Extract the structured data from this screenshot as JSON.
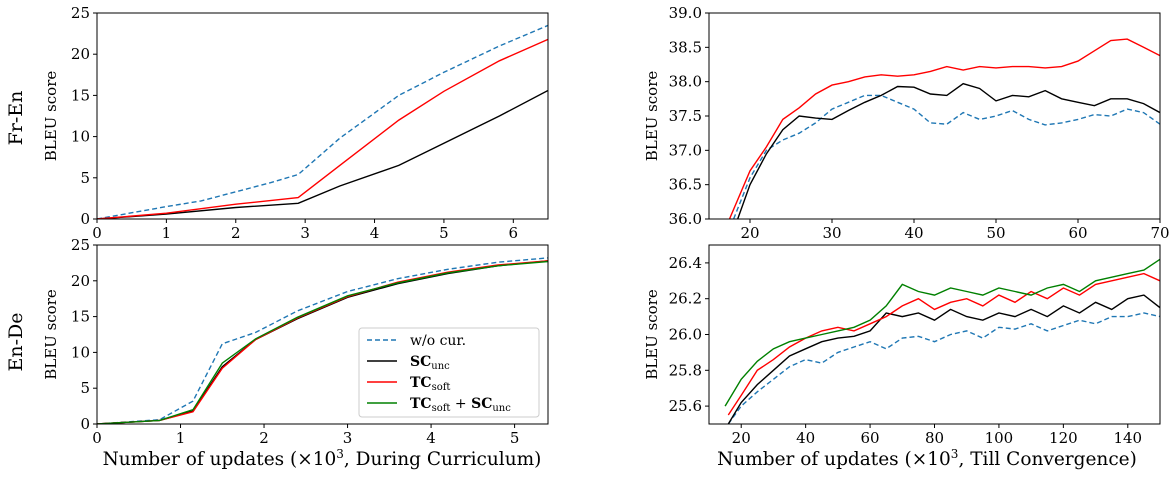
{
  "row_labels": [
    "Fr-En",
    "En-De"
  ],
  "xlabels": {
    "left": {
      "pre": "Number of updates (×10",
      "sup": "3",
      "post": ", During Curriculum)"
    },
    "right": {
      "pre": "Number of updates (×10",
      "sup": "3",
      "post": ", Till Convergence)"
    }
  },
  "colors": {
    "w/o cur.": "#1f77b4",
    "SC_unc": "#000000",
    "TC_soft": "#ff0000",
    "TC_soft+SC_unc": "#008000"
  },
  "legend": {
    "placement": "lower-right of bottom-left panel",
    "entries": [
      {
        "key": "w/o cur.",
        "text": "w/o cur.",
        "style": "dashed"
      },
      {
        "key": "SC_unc",
        "bold": "SC",
        "sub": "unc",
        "style": "solid"
      },
      {
        "key": "TC_soft",
        "bold": "TC",
        "sub": "soft",
        "style": "solid"
      },
      {
        "key": "TC_soft+SC_unc",
        "bold": "TC",
        "sub": "soft",
        "plus": " + ",
        "bold2": "SC",
        "sub2": "unc",
        "style": "solid"
      }
    ]
  },
  "chart_data": [
    {
      "id": "fr-en-curriculum",
      "type": "line",
      "ylabel": "BLEU score",
      "xlim": [
        0,
        6.5
      ],
      "ylim": [
        0,
        25
      ],
      "xticks": [
        0,
        1,
        2,
        3,
        4,
        5,
        6
      ],
      "yticks": [
        0,
        5,
        10,
        15,
        20,
        25
      ],
      "series": [
        {
          "key": "w/o cur.",
          "x": [
            0,
            1,
            1.5,
            2,
            2.5,
            2.9,
            3.5,
            4.35,
            5,
            5.8,
            6.5
          ],
          "y": [
            0,
            1.5,
            2.2,
            3.3,
            4.4,
            5.4,
            9.8,
            15,
            17.8,
            21,
            23.5
          ]
        },
        {
          "key": "SC_unc",
          "x": [
            0,
            1,
            2,
            2.9,
            3.5,
            4.35,
            5,
            5.8,
            6.5
          ],
          "y": [
            0,
            0.6,
            1.4,
            1.9,
            4,
            6.5,
            9.2,
            12.5,
            15.6
          ]
        },
        {
          "key": "TC_soft",
          "x": [
            0,
            1,
            2,
            2.9,
            3.5,
            4.35,
            5,
            5.8,
            6.5
          ],
          "y": [
            0,
            0.7,
            1.8,
            2.6,
            6.5,
            12,
            15.5,
            19.2,
            21.8
          ]
        }
      ]
    },
    {
      "id": "fr-en-convergence",
      "type": "line",
      "ylabel": "BLEU score",
      "xlim": [
        15,
        70
      ],
      "ylim": [
        36.0,
        39.0
      ],
      "xticks": [
        20,
        30,
        40,
        50,
        60,
        70
      ],
      "yticks": [
        36.0,
        36.5,
        37.0,
        37.5,
        38.0,
        38.5,
        39.0
      ],
      "ytick_labels": [
        "36.0",
        "36.5",
        "37.0",
        "37.5",
        "38.0",
        "38.5",
        "39.0"
      ],
      "series": [
        {
          "key": "w/o cur.",
          "x": [
            18,
            20,
            22,
            24,
            26,
            28,
            30,
            32,
            34,
            36,
            38,
            40,
            42,
            44,
            46,
            48,
            50,
            52,
            54,
            56,
            58,
            60,
            62,
            64,
            66,
            68,
            70
          ],
          "y": [
            36.0,
            36.6,
            37.0,
            37.15,
            37.25,
            37.4,
            37.6,
            37.7,
            37.8,
            37.8,
            37.7,
            37.6,
            37.4,
            37.38,
            37.55,
            37.45,
            37.5,
            37.58,
            37.45,
            37.37,
            37.4,
            37.45,
            37.52,
            37.5,
            37.6,
            37.55,
            37.38
          ]
        },
        {
          "key": "SC_unc",
          "x": [
            18.5,
            20,
            22,
            24,
            26,
            28,
            30,
            32,
            34,
            36,
            38,
            40,
            42,
            44,
            46,
            48,
            50,
            52,
            54,
            56,
            58,
            60,
            62,
            64,
            66,
            68,
            70
          ],
          "y": [
            36.0,
            36.5,
            36.95,
            37.3,
            37.5,
            37.47,
            37.45,
            37.58,
            37.7,
            37.8,
            37.93,
            37.92,
            37.82,
            37.8,
            37.97,
            37.9,
            37.72,
            37.8,
            37.78,
            37.87,
            37.75,
            37.7,
            37.65,
            37.75,
            37.75,
            37.68,
            37.55
          ]
        },
        {
          "key": "TC_soft",
          "x": [
            17.5,
            20,
            22,
            24,
            26,
            28,
            30,
            32,
            34,
            36,
            38,
            40,
            42,
            44,
            46,
            48,
            50,
            52,
            54,
            56,
            58,
            60,
            62,
            64,
            66,
            68,
            70
          ],
          "y": [
            36.0,
            36.7,
            37.05,
            37.45,
            37.62,
            37.82,
            37.95,
            38.0,
            38.07,
            38.1,
            38.08,
            38.1,
            38.15,
            38.22,
            38.17,
            38.22,
            38.2,
            38.22,
            38.22,
            38.2,
            38.22,
            38.3,
            38.45,
            38.6,
            38.62,
            38.5,
            38.38
          ]
        }
      ]
    },
    {
      "id": "en-de-curriculum",
      "type": "line",
      "ylabel": "BLEU score",
      "xlim": [
        0,
        5.4
      ],
      "ylim": [
        0,
        25
      ],
      "xticks": [
        0,
        1,
        2,
        3,
        4,
        5
      ],
      "yticks": [
        0,
        5,
        10,
        15,
        20,
        25
      ],
      "series": [
        {
          "key": "w/o cur.",
          "x": [
            0,
            0.75,
            1.15,
            1.5,
            1.9,
            2.4,
            3,
            3.6,
            4.2,
            4.8,
            5.4
          ],
          "y": [
            0,
            0.6,
            3.2,
            11.2,
            12.8,
            15.8,
            18.5,
            20.3,
            21.6,
            22.6,
            23.2
          ]
        },
        {
          "key": "SC_unc",
          "x": [
            0,
            0.75,
            1.15,
            1.5,
            1.9,
            2.4,
            3,
            3.6,
            4.2,
            4.8,
            5.4
          ],
          "y": [
            0,
            0.5,
            1.8,
            8,
            11.8,
            14.7,
            17.7,
            19.6,
            21,
            22.1,
            22.8
          ]
        },
        {
          "key": "TC_soft",
          "x": [
            0,
            0.75,
            1.15,
            1.5,
            1.9,
            2.4,
            3,
            3.6,
            4.2,
            4.8,
            5.4
          ],
          "y": [
            0,
            0.5,
            1.7,
            7.8,
            11.8,
            14.8,
            17.8,
            19.8,
            21.2,
            22.2,
            22.8
          ]
        },
        {
          "key": "TC_soft+SC_unc",
          "x": [
            0,
            0.75,
            1.15,
            1.5,
            1.9,
            2.4,
            3,
            3.6,
            4.2,
            4.8,
            5.4
          ],
          "y": [
            0,
            0.5,
            2.0,
            8.5,
            11.9,
            14.9,
            17.9,
            19.7,
            21.1,
            22.1,
            22.7
          ]
        }
      ]
    },
    {
      "id": "en-de-convergence",
      "type": "line",
      "ylabel": "BLEU score",
      "xlim": [
        10,
        150
      ],
      "ylim": [
        25.5,
        26.5
      ],
      "xticks": [
        20,
        40,
        60,
        80,
        100,
        120,
        140
      ],
      "yticks": [
        25.6,
        25.8,
        26.0,
        26.2,
        26.4
      ],
      "ytick_labels": [
        "25.6",
        "25.8",
        "26.0",
        "26.2",
        "26.4"
      ],
      "series": [
        {
          "key": "w/o cur.",
          "x": [
            16,
            20,
            25,
            30,
            35,
            40,
            45,
            50,
            55,
            60,
            65,
            70,
            75,
            80,
            85,
            90,
            95,
            100,
            105,
            110,
            115,
            120,
            125,
            130,
            135,
            140,
            145,
            150
          ],
          "y": [
            25.5,
            25.6,
            25.68,
            25.75,
            25.82,
            25.86,
            25.84,
            25.9,
            25.93,
            25.96,
            25.92,
            25.98,
            25.99,
            25.96,
            26.0,
            26.02,
            25.98,
            26.04,
            26.03,
            26.06,
            26.02,
            26.05,
            26.08,
            26.06,
            26.1,
            26.1,
            26.12,
            26.1
          ]
        },
        {
          "key": "SC_unc",
          "x": [
            16,
            20,
            25,
            30,
            35,
            40,
            45,
            50,
            55,
            60,
            65,
            70,
            75,
            80,
            85,
            90,
            95,
            100,
            105,
            110,
            115,
            120,
            125,
            130,
            135,
            140,
            145,
            150
          ],
          "y": [
            25.5,
            25.62,
            25.72,
            25.8,
            25.88,
            25.92,
            25.96,
            25.98,
            25.99,
            26.02,
            26.12,
            26.1,
            26.12,
            26.08,
            26.14,
            26.1,
            26.08,
            26.12,
            26.1,
            26.14,
            26.1,
            26.16,
            26.12,
            26.18,
            26.14,
            26.2,
            26.22,
            26.15
          ]
        },
        {
          "key": "TC_soft",
          "x": [
            16,
            20,
            25,
            30,
            35,
            40,
            45,
            50,
            55,
            60,
            65,
            70,
            75,
            80,
            85,
            90,
            95,
            100,
            105,
            110,
            115,
            120,
            125,
            130,
            135,
            140,
            145,
            150
          ],
          "y": [
            25.55,
            25.66,
            25.8,
            25.86,
            25.93,
            25.98,
            26.02,
            26.04,
            26.02,
            26.06,
            26.1,
            26.16,
            26.2,
            26.14,
            26.18,
            26.2,
            26.16,
            26.22,
            26.18,
            26.24,
            26.2,
            26.26,
            26.22,
            26.28,
            26.3,
            26.32,
            26.34,
            26.3
          ]
        },
        {
          "key": "TC_soft+SC_unc",
          "x": [
            15,
            20,
            25,
            30,
            35,
            40,
            45,
            50,
            55,
            60,
            65,
            70,
            75,
            80,
            85,
            90,
            95,
            100,
            105,
            110,
            115,
            120,
            125,
            130,
            135,
            140,
            145,
            150
          ],
          "y": [
            25.6,
            25.75,
            25.85,
            25.92,
            25.96,
            25.98,
            26.0,
            26.02,
            26.04,
            26.08,
            26.16,
            26.28,
            26.24,
            26.22,
            26.26,
            26.24,
            26.22,
            26.26,
            26.24,
            26.22,
            26.26,
            26.28,
            26.24,
            26.3,
            26.32,
            26.34,
            26.36,
            26.42
          ]
        }
      ]
    }
  ]
}
